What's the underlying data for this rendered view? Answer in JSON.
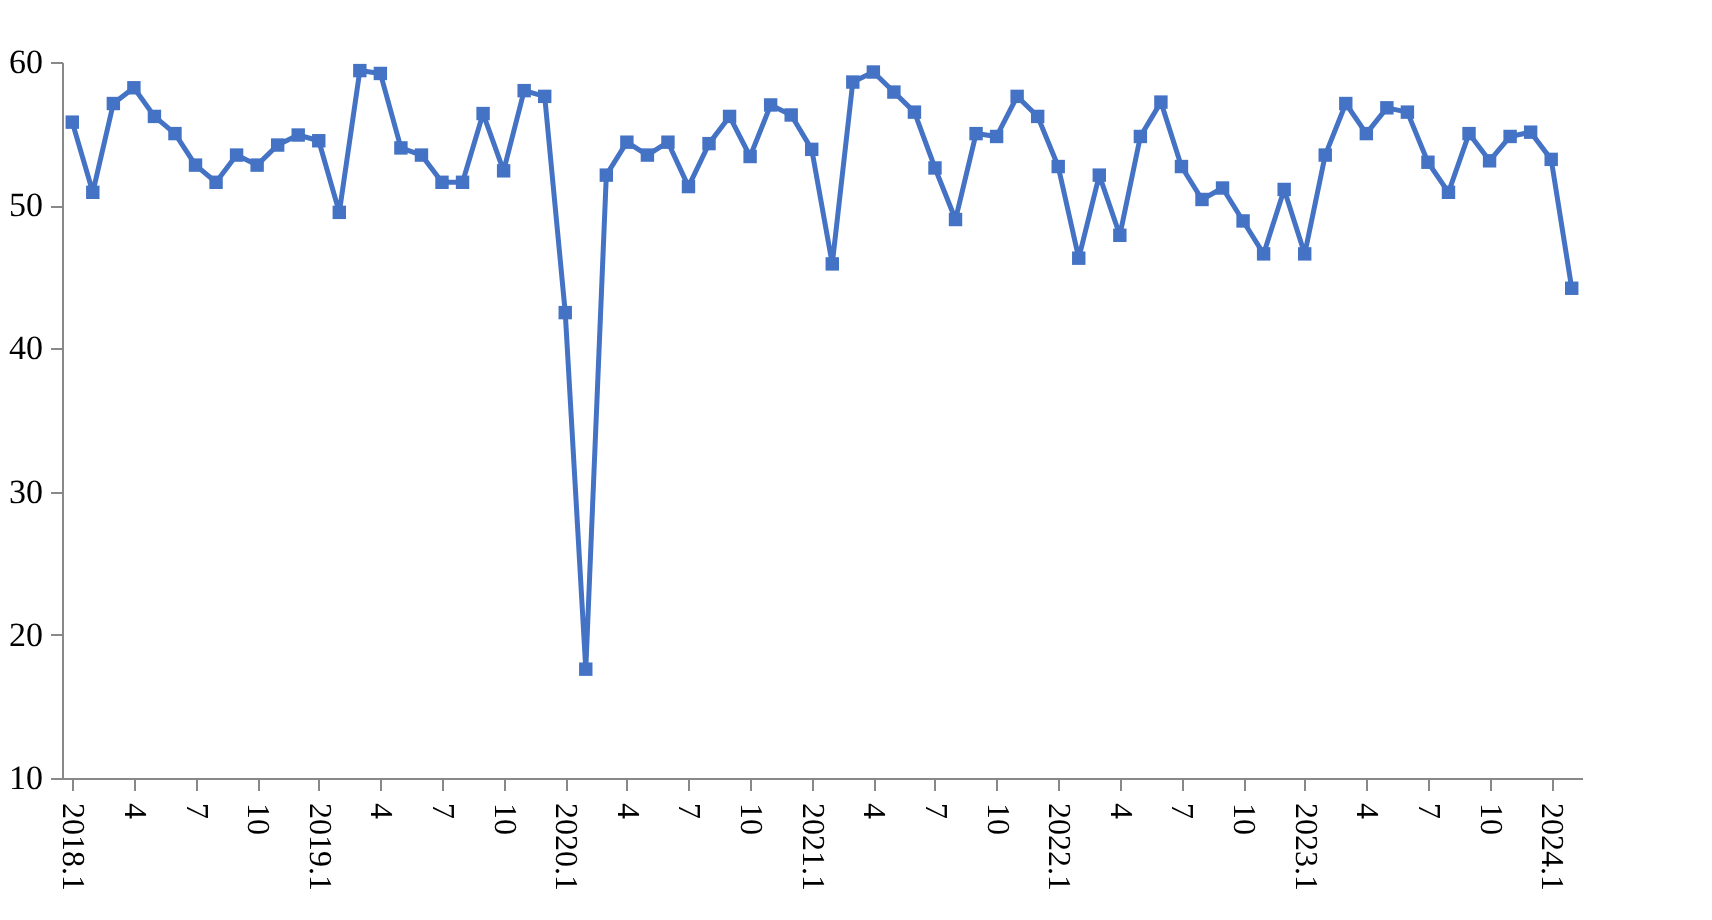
{
  "chart_data": {
    "type": "line",
    "categories": [
      "2018.1",
      null,
      null,
      "4",
      null,
      null,
      "7",
      null,
      null,
      "10",
      null,
      null,
      "2019.1",
      null,
      null,
      "4",
      null,
      null,
      "7",
      null,
      null,
      "10",
      null,
      null,
      "2020.1",
      null,
      null,
      "4",
      null,
      null,
      "7",
      null,
      null,
      "10",
      null,
      null,
      "2021.1",
      null,
      null,
      "4",
      null,
      null,
      "7",
      null,
      null,
      "10",
      null,
      null,
      "2022.1",
      null,
      null,
      "4",
      null,
      null,
      "7",
      null,
      null,
      "10",
      null,
      null,
      "2023.1",
      null,
      null,
      "4",
      null,
      null,
      "7",
      null,
      null,
      "10",
      null,
      null,
      "2024.1",
      null
    ],
    "series": [
      {
        "color": "#4472c4",
        "values": [
          55.8,
          50.9,
          57.1,
          58.2,
          56.2,
          55.0,
          52.8,
          51.6,
          53.5,
          52.8,
          54.2,
          54.9,
          54.5,
          49.5,
          59.4,
          59.2,
          54.0,
          53.5,
          51.6,
          51.6,
          56.4,
          52.4,
          58.0,
          57.6,
          42.5,
          17.6,
          52.1,
          54.4,
          53.5,
          54.4,
          51.3,
          54.3,
          56.2,
          53.4,
          57.0,
          56.3,
          53.9,
          45.9,
          58.6,
          59.3,
          57.9,
          56.5,
          52.6,
          49.0,
          55.0,
          54.8,
          57.6,
          56.2,
          52.7,
          46.3,
          52.1,
          47.9,
          54.8,
          57.2,
          52.7,
          50.4,
          51.2,
          48.9,
          46.6,
          51.1,
          46.6,
          53.5,
          57.1,
          55.0,
          56.8,
          56.5,
          53.0,
          50.9,
          55.0,
          53.1,
          54.8,
          55.1,
          53.2,
          44.2
        ]
      }
    ],
    "ylim": [
      10,
      60
    ],
    "yticks": [
      10,
      20,
      30,
      40,
      50,
      60
    ],
    "marker": "square",
    "grid": false
  }
}
